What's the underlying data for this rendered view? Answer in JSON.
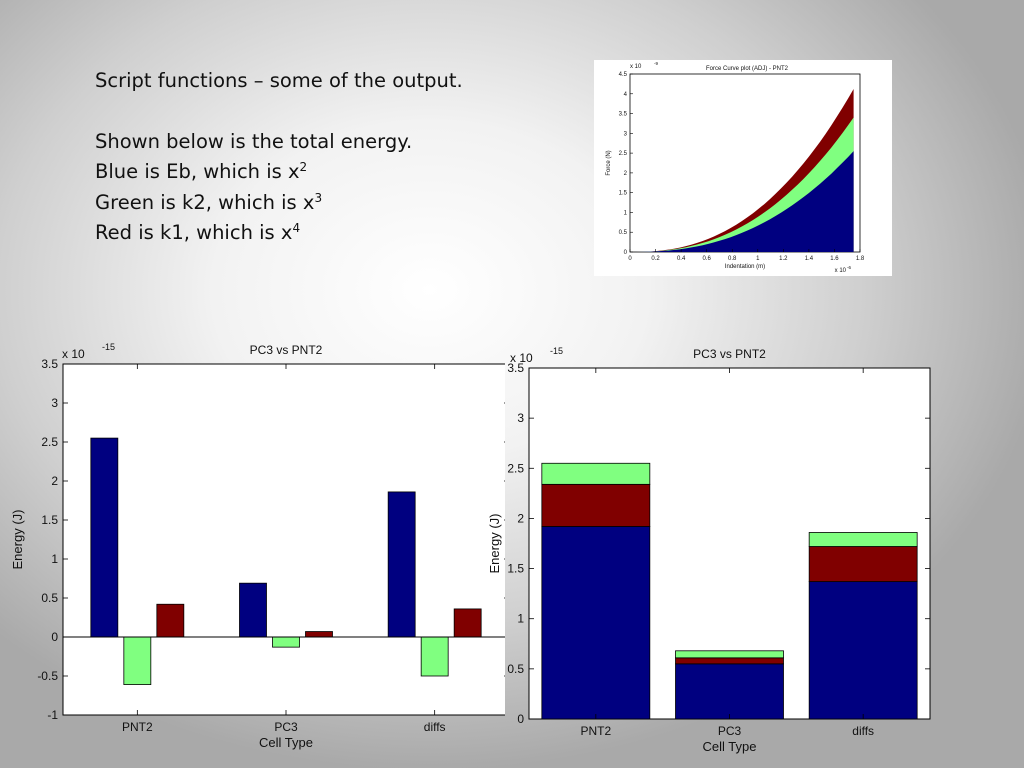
{
  "slide": {
    "line1": "Script functions – some of the output.",
    "line2": "Shown below is the total energy.",
    "line3_text": "Blue is Eb, which is x",
    "line3_sup": "2",
    "line4_text": "Green is k2, which is x",
    "line4_sup": "3",
    "line5_text": "Red is k1, which is x",
    "line5_sup": "4"
  },
  "colors": {
    "blue": "#000080",
    "green": "#80ff80",
    "red": "#800000"
  },
  "chart_data": [
    {
      "type": "area",
      "title": "Force Curve plot (ADJ) - PNT2",
      "xlabel": "Indentation (m)",
      "ylabel": "Force (N)",
      "x_multiplier": "x 10",
      "x_exponent": "-6",
      "y_multiplier": "x 10",
      "y_exponent": "-9",
      "xlim": [
        0,
        1.8
      ],
      "ylim": [
        0,
        4.5
      ],
      "x_ticks": [
        "0",
        "0.2",
        "0.4",
        "0.6",
        "0.8",
        "1",
        "1.2",
        "1.4",
        "1.6",
        "1.8"
      ],
      "y_ticks": [
        "0",
        "0.5",
        "1",
        "1.5",
        "2",
        "2.5",
        "3",
        "3.5",
        "4",
        "4.5"
      ],
      "x_end": 1.75,
      "stack_layers": [
        {
          "color": "blue",
          "end_value": 2.55
        },
        {
          "color": "green",
          "end_value": 3.4
        },
        {
          "color": "red",
          "end_value": 4.12
        }
      ]
    },
    {
      "type": "bar",
      "title": "PC3 vs PNT2",
      "xlabel": "Cell Type",
      "ylabel": "Energy (J)",
      "y_multiplier": "x 10",
      "y_exponent": "-15",
      "categories": [
        "PNT2",
        "PC3",
        "diffs"
      ],
      "ylim": [
        -1,
        3.5
      ],
      "y_ticks": [
        "-1",
        "-0.5",
        "0",
        "0.5",
        "1",
        "1.5",
        "2",
        "2.5",
        "3",
        "3.5"
      ],
      "series": [
        {
          "color": "blue",
          "values": [
            2.55,
            0.69,
            1.86
          ]
        },
        {
          "color": "green",
          "values": [
            -0.61,
            -0.13,
            -0.5
          ]
        },
        {
          "color": "red",
          "values": [
            0.42,
            0.07,
            0.36
          ]
        }
      ]
    },
    {
      "type": "bar",
      "stacked": true,
      "title": "PC3 vs PNT2",
      "xlabel": "Cell Type",
      "ylabel": "Energy (J)",
      "y_multiplier": "x 10",
      "y_exponent": "-15",
      "categories": [
        "PNT2",
        "PC3",
        "diffs"
      ],
      "ylim": [
        0,
        3.5
      ],
      "y_ticks": [
        "0",
        "0.5",
        "1",
        "1.5",
        "2",
        "2.5",
        "3",
        "3.5"
      ],
      "series": [
        {
          "color": "blue",
          "values": [
            1.92,
            0.55,
            1.37
          ]
        },
        {
          "color": "red",
          "values": [
            0.42,
            0.06,
            0.35
          ]
        },
        {
          "color": "green",
          "values": [
            0.21,
            0.07,
            0.14
          ]
        }
      ]
    }
  ]
}
